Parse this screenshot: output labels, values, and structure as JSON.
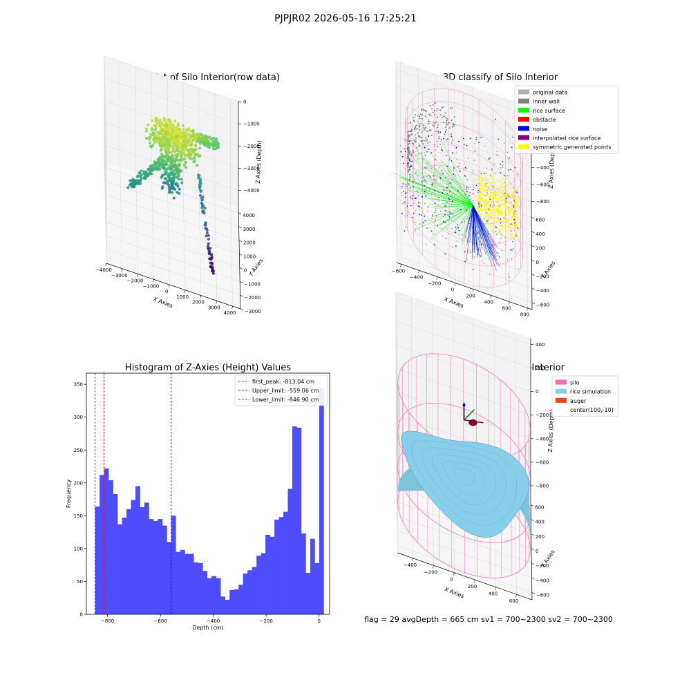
{
  "suptitle": "PJPJR02 2026-05-16 17:25:21",
  "footer": "flag = 29  avgDepth = 665 cm  sv1 = 700~2300  sv2 = 700~2300",
  "colors": {
    "histogram_bar": "#4d4dff",
    "first_peak": "#ff0000",
    "limits": "#0000ff",
    "silo": "#ff69b4",
    "rice_simulation": "#87ceeb",
    "auger": "#ff4500",
    "original_data": "#b0b0b0",
    "inner_wall": "#808080",
    "rice_surface": "#00ff00",
    "obstacle": "#ff0000",
    "noise": "#0000ff",
    "interpolated_rice_surface": "#800080",
    "symmetric_generated_points": "#ffff00"
  },
  "chart_data": [
    {
      "type": "scatter",
      "projection": "3d",
      "title": "3D Plot of Silo Interior(row data)",
      "xlabel": "X Axies",
      "ylabel": "Y Axies",
      "zlabel": "Z Axies (Depth)",
      "xlim": [
        -4000,
        4500
      ],
      "ylim": [
        -3000,
        4500
      ],
      "zlim": [
        -4700,
        0
      ],
      "x_ticks": [
        "−4000",
        "−3000",
        "−2000",
        "−1000",
        "0",
        "1000",
        "2000",
        "3000",
        "4000"
      ],
      "y_ticks": [
        "−3000",
        "−2000",
        "−1000",
        "0",
        "1000",
        "2000",
        "3000",
        "4000"
      ],
      "z_ticks": [
        "0",
        "−1000",
        "−2000",
        "−3000",
        "−4000"
      ],
      "colormap": "viridis"
    },
    {
      "type": "scatter",
      "projection": "3d",
      "title": "3D classify of Silo Interior",
      "xlabel": "X Axies",
      "ylabel": "Y Axies",
      "zlabel": "Z Axies (Depth)",
      "xlim": [
        -650,
        850
      ],
      "ylim": [
        -700,
        700
      ],
      "zlim": [
        -900,
        300
      ],
      "x_ticks": [
        "−600",
        "−400",
        "−200",
        "0",
        "200",
        "400",
        "600",
        "800"
      ],
      "y_ticks": [
        "−600",
        "−400",
        "−200",
        "0",
        "200",
        "400",
        "600"
      ],
      "z_ticks": [
        "200",
        "0",
        "−200",
        "−400",
        "−600",
        "−800"
      ],
      "legend_position": "top-right",
      "legend": [
        {
          "label": "original data",
          "color": "#b0b0b0"
        },
        {
          "label": "inner wall",
          "color": "#808080"
        },
        {
          "label": "rice surface",
          "color": "#00ff00"
        },
        {
          "label": "obstacle",
          "color": "#ff0000"
        },
        {
          "label": "noise",
          "color": "#0000ff"
        },
        {
          "label": "interpolated rice surface",
          "color": "#800080"
        },
        {
          "label": "symmetric generated points",
          "color": "#ffff00"
        }
      ]
    },
    {
      "type": "bar",
      "title": "Histogram of Z-Axies (Height) Values",
      "xlabel": "Depth (cm)",
      "ylabel": "Frequency",
      "xlim": [
        -880,
        40
      ],
      "ylim": [
        0,
        367
      ],
      "x_ticks": [
        "−800",
        "−600",
        "−400",
        "−200",
        "0"
      ],
      "y_ticks": [
        "0",
        "50",
        "100",
        "150",
        "200",
        "250",
        "300",
        "350"
      ],
      "bin_start": -846.9,
      "bin_width": 16.95,
      "values": [
        164,
        212,
        222,
        204,
        183,
        137,
        147,
        160,
        174,
        195,
        163,
        170,
        145,
        142,
        145,
        135,
        110,
        150,
        95,
        98,
        92,
        92,
        79,
        78,
        66,
        55,
        58,
        55,
        27,
        22,
        37,
        38,
        45,
        62,
        67,
        72,
        89,
        93,
        121,
        118,
        144,
        148,
        156,
        191,
        286,
        284,
        123,
        63,
        115,
        78,
        345
      ],
      "legend_position": "top-right",
      "lines": [
        {
          "label": "first_peak: -813.04 cm",
          "x": -813.04,
          "color": "#ff0000"
        },
        {
          "label": "Upper_limit: -559.06 cm",
          "x": -559.06,
          "color": "#0000ff"
        },
        {
          "label": "Lower_limit: -846.90 cm",
          "x": -846.9,
          "color": "#0000ff"
        }
      ]
    },
    {
      "type": "surface",
      "projection": "3d",
      "title": "3D simulation of Silo Interior",
      "xlabel": "X Axies",
      "ylabel": "Y Axies",
      "zlabel": "Z Axies (Depth)",
      "xlim": [
        -550,
        750
      ],
      "ylim": [
        -700,
        700
      ],
      "zlim": [
        -900,
        450
      ],
      "x_ticks": [
        "−400",
        "−200",
        "0",
        "200",
        "400",
        "600"
      ],
      "y_ticks": [
        "−600",
        "−400",
        "−200",
        "0",
        "200",
        "400",
        "600"
      ],
      "z_ticks": [
        "400",
        "200",
        "0",
        "−200",
        "−400",
        "−600",
        "−800"
      ],
      "legend_position": "top-right",
      "legend": [
        {
          "label": "silo",
          "color": "#ff69b4"
        },
        {
          "label": "rice simulation",
          "color": "#87ceeb"
        },
        {
          "label": "auger",
          "color": "#ff4500"
        },
        {
          "label": "center(100,-10)",
          "color": ""
        }
      ]
    }
  ]
}
